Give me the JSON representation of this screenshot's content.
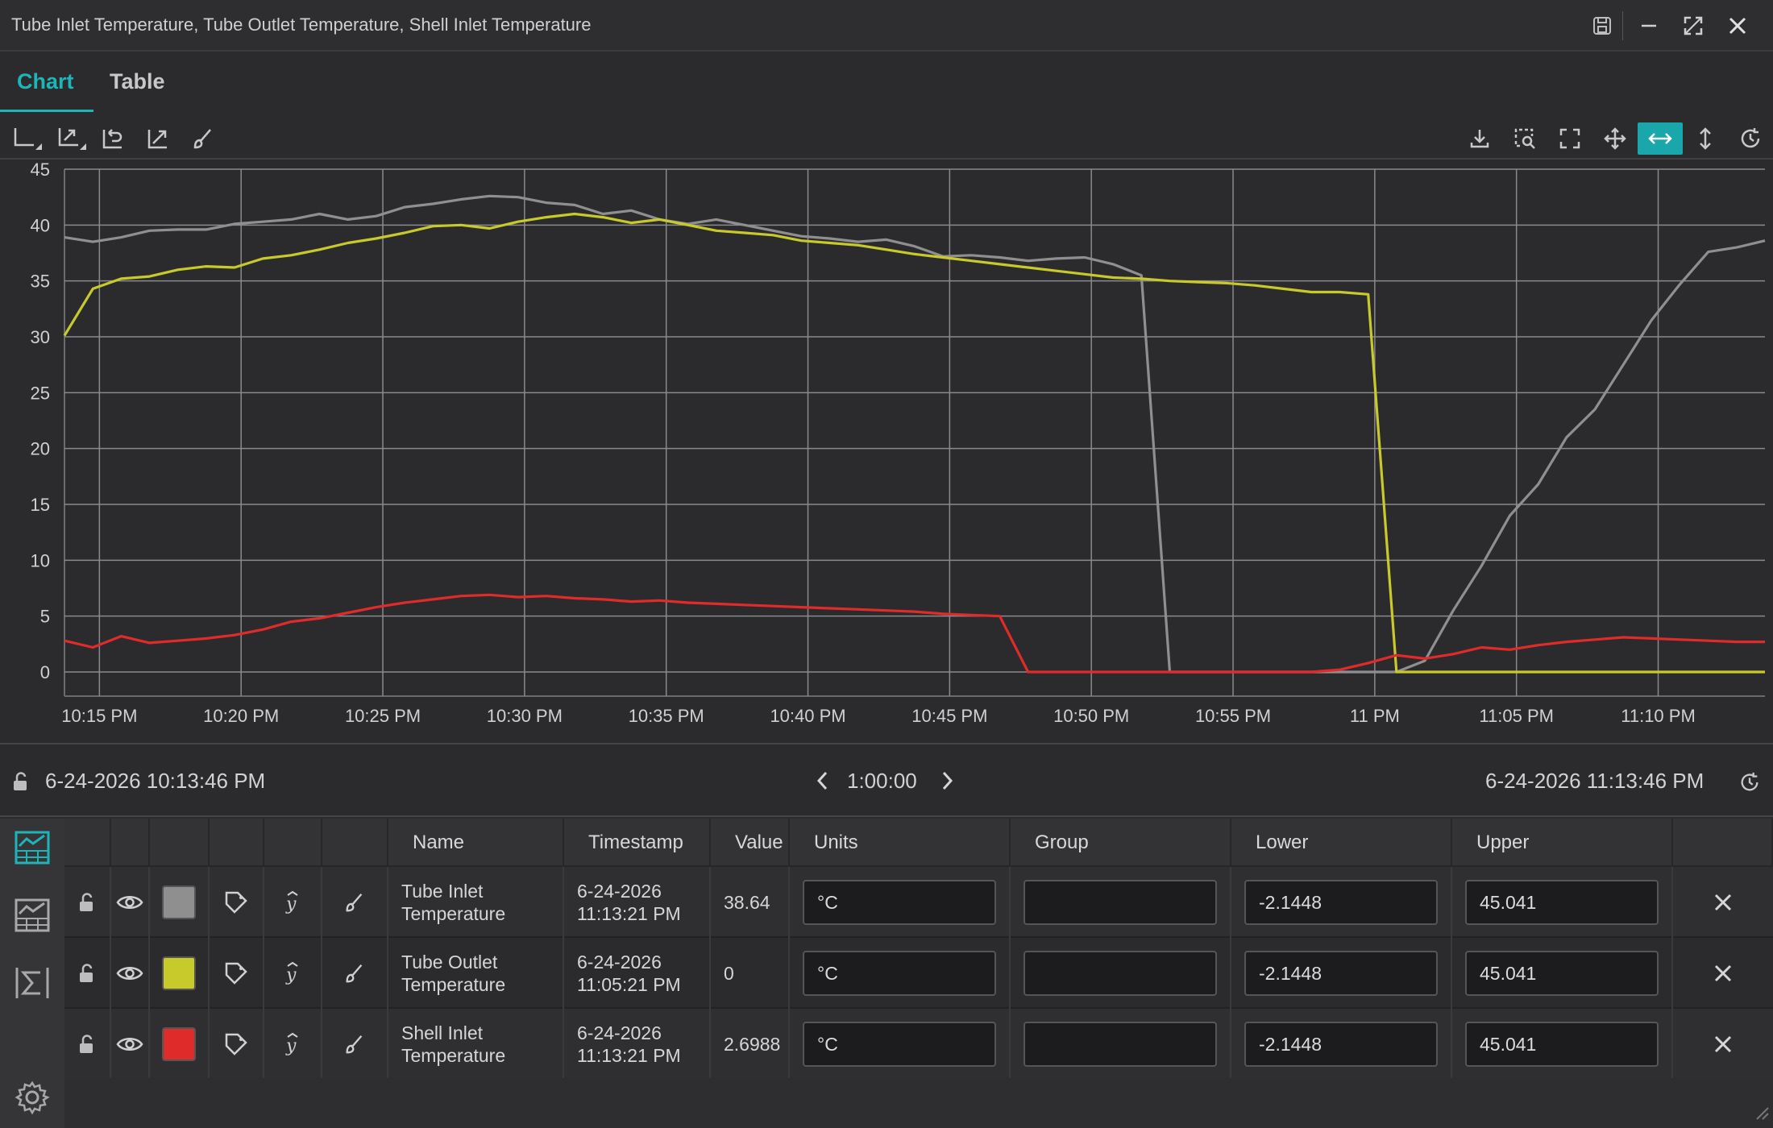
{
  "window": {
    "title": "Tube Inlet Temperature, Tube Outlet Temperature, Shell Inlet Temperature"
  },
  "tabs": [
    {
      "label": "Chart",
      "active": true
    },
    {
      "label": "Table",
      "active": false
    }
  ],
  "toolbar": {
    "left_icons": [
      "axis-icon",
      "auto-scale-icon",
      "undo-zoom-icon",
      "fit-icon",
      "brush-icon"
    ],
    "right_icons": [
      "download-icon",
      "zoom-select-icon",
      "fullscreen-icon",
      "pan-icon",
      "horizontal-zoom-icon",
      "vertical-zoom-icon",
      "refresh-icon"
    ],
    "active_tool": "horizontal-zoom-icon",
    "accent": "#1aa7ab"
  },
  "chart_data": {
    "type": "line",
    "ylim": [
      0,
      45
    ],
    "yticks": [
      "0",
      "5",
      "10",
      "15",
      "20",
      "25",
      "30",
      "35",
      "40",
      "45"
    ],
    "xticks": [
      "10:15 PM",
      "10:20 PM",
      "10:25 PM",
      "10:30 PM",
      "10:35 PM",
      "10:40 PM",
      "10:45 PM",
      "10:50 PM",
      "10:55 PM",
      "11 PM",
      "11:05 PM",
      "11:10 PM"
    ],
    "x_unit": "minutes after 10:13:46 PM",
    "grid": true,
    "series": [
      {
        "name": "Tube Inlet Temperature",
        "color": "#8f8f8f",
        "x": [
          0,
          1,
          2,
          3,
          4,
          5,
          6,
          7,
          8,
          9,
          10,
          11,
          12,
          13,
          14,
          15,
          16,
          17,
          18,
          19,
          20,
          21,
          22,
          23,
          24,
          25,
          26,
          27,
          28,
          29,
          30,
          31,
          32,
          33,
          34,
          35,
          36,
          37,
          38,
          39,
          40,
          41,
          42,
          43,
          44,
          45,
          46,
          47,
          48,
          49,
          50,
          51,
          52,
          53,
          54,
          55,
          56,
          57,
          58,
          59,
          60
        ],
        "y": [
          38.9,
          38.5,
          38.9,
          39.5,
          39.6,
          39.6,
          40.1,
          40.3,
          40.5,
          41.0,
          40.5,
          40.8,
          41.6,
          41.9,
          42.3,
          42.6,
          42.5,
          42.0,
          41.8,
          41.0,
          41.3,
          40.5,
          40.1,
          40.5,
          40.0,
          39.5,
          39.0,
          38.8,
          38.5,
          38.7,
          38.1,
          37.2,
          37.3,
          37.1,
          36.8,
          37.0,
          37.1,
          36.5,
          35.5,
          0.0,
          0.0,
          0.0,
          0.0,
          0.0,
          0.0,
          0.0,
          0.0,
          0.0,
          1.0,
          5.5,
          9.5,
          14.0,
          16.8,
          21.0,
          23.5,
          27.5,
          31.5,
          34.7,
          37.6,
          38.0,
          38.6
        ]
      },
      {
        "name": "Tube Outlet Temperature",
        "color": "#c8c92a",
        "x": [
          0,
          1,
          2,
          3,
          4,
          5,
          6,
          7,
          8,
          9,
          10,
          11,
          12,
          13,
          14,
          15,
          16,
          17,
          18,
          19,
          20,
          21,
          22,
          23,
          24,
          25,
          26,
          27,
          28,
          29,
          30,
          31,
          32,
          33,
          34,
          35,
          36,
          37,
          38,
          39,
          40,
          41,
          42,
          43,
          44,
          45,
          46,
          47,
          48,
          49,
          50,
          51,
          52,
          53,
          54,
          55,
          56,
          57,
          58,
          59,
          60
        ],
        "y": [
          30.1,
          34.3,
          35.2,
          35.4,
          36.0,
          36.3,
          36.2,
          37.0,
          37.3,
          37.8,
          38.4,
          38.8,
          39.3,
          39.9,
          40.0,
          39.7,
          40.3,
          40.7,
          41.0,
          40.7,
          40.2,
          40.5,
          40.0,
          39.5,
          39.3,
          39.1,
          38.6,
          38.4,
          38.2,
          37.8,
          37.4,
          37.1,
          36.8,
          36.5,
          36.2,
          35.9,
          35.6,
          35.3,
          35.2,
          35.0,
          34.9,
          34.8,
          34.6,
          34.3,
          34.0,
          34.0,
          33.8,
          0.0,
          0.0,
          0.0,
          0.0,
          0.0,
          0.0,
          0.0,
          0.0,
          0.0,
          0.0,
          0.0,
          0.0,
          0.0,
          0.0
        ]
      },
      {
        "name": "Shell Inlet Temperature",
        "color": "#e02b2b",
        "x": [
          0,
          1,
          2,
          3,
          4,
          5,
          6,
          7,
          8,
          9,
          10,
          11,
          12,
          13,
          14,
          15,
          16,
          17,
          18,
          19,
          20,
          21,
          22,
          23,
          24,
          25,
          26,
          27,
          28,
          29,
          30,
          31,
          32,
          33,
          34,
          35,
          36,
          37,
          38,
          39,
          40,
          41,
          42,
          43,
          44,
          45,
          46,
          47,
          48,
          49,
          50,
          51,
          52,
          53,
          54,
          55,
          56,
          57,
          58,
          59,
          60
        ],
        "y": [
          2.8,
          2.2,
          3.2,
          2.6,
          2.8,
          3.0,
          3.3,
          3.8,
          4.5,
          4.8,
          5.3,
          5.8,
          6.2,
          6.5,
          6.8,
          6.9,
          6.7,
          6.8,
          6.6,
          6.5,
          6.3,
          6.4,
          6.2,
          6.1,
          6.0,
          5.9,
          5.8,
          5.7,
          5.6,
          5.5,
          5.4,
          5.2,
          5.1,
          5.0,
          0.0,
          0.0,
          0.0,
          0.0,
          0.0,
          0.0,
          0.0,
          0.0,
          0.0,
          0.0,
          0.0,
          0.2,
          0.8,
          1.5,
          1.2,
          1.6,
          2.2,
          2.0,
          2.4,
          2.7,
          2.9,
          3.1,
          3.0,
          2.9,
          2.8,
          2.7,
          2.7
        ]
      }
    ]
  },
  "range": {
    "start": "6-24-2026 10:13:46 PM",
    "duration": "1:00:00",
    "end": "6-24-2026 11:13:46 PM"
  },
  "table": {
    "headers": {
      "name": "Name",
      "timestamp": "Timestamp",
      "value": "Value",
      "units": "Units",
      "group": "Group",
      "lower": "Lower",
      "upper": "Upper"
    },
    "rows": [
      {
        "name_line1": "Tube Inlet",
        "name_line2": "Temperature",
        "ts_line1": "6-24-2026",
        "ts_line2": "11:13:21 PM",
        "value": "38.64",
        "units": "°C",
        "group": "",
        "lower": "-2.1448",
        "upper": "45.041",
        "color": "#8f8f8f"
      },
      {
        "name_line1": "Tube Outlet",
        "name_line2": "Temperature",
        "ts_line1": "6-24-2026",
        "ts_line2": "11:05:21 PM",
        "value": "0",
        "units": "°C",
        "group": "",
        "lower": "-2.1448",
        "upper": "45.041",
        "color": "#c8c92a"
      },
      {
        "name_line1": "Shell Inlet",
        "name_line2": "Temperature",
        "ts_line1": "6-24-2026",
        "ts_line2": "11:13:21 PM",
        "value": "2.6988",
        "units": "°C",
        "group": "",
        "lower": "-2.1448",
        "upper": "45.041",
        "color": "#e02b2b"
      }
    ]
  }
}
